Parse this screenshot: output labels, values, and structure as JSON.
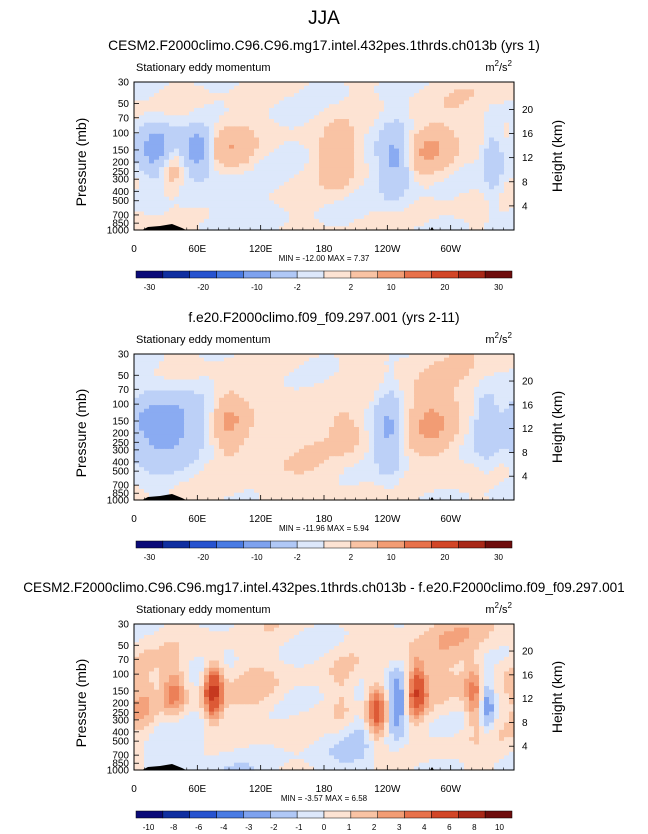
{
  "page": {
    "season": "JJA"
  },
  "chart_data": [
    {
      "type": "heatmap",
      "title": "CESM2.F2000climo.C96.C96.mg17.intel.432pes.1thrds.ch013b (yrs 1)",
      "subtitle": "Stationary eddy momentum",
      "units": "m²/s²",
      "units_base": "m",
      "units_mid": "/s",
      "units_sup": "2",
      "ylabel": "Pressure (mb)",
      "ylabel_right": "Height (km)",
      "xticks": [
        "0",
        "60E",
        "120E",
        "180",
        "120W",
        "60W"
      ],
      "yticks": [
        "30",
        "50",
        "70",
        "100",
        "150",
        "200",
        "250",
        "300",
        "400",
        "500",
        "700",
        "850",
        "1000"
      ],
      "ylevels": [
        30,
        50,
        70,
        100,
        150,
        200,
        250,
        300,
        400,
        500,
        700,
        850,
        1000
      ],
      "yticks_right": [
        "20",
        "16",
        "12",
        "8",
        "4"
      ],
      "stats": "MIN = -12.00  MAX =  7.37",
      "min": -12.0,
      "max": 7.37,
      "colorbar_labels": [
        "-30",
        "-20",
        "-10",
        "-2",
        "2",
        "10",
        "20",
        "30"
      ],
      "blobs": [
        {
          "lon": 22,
          "p": 150,
          "v": -8,
          "slon": 14,
          "sp": 0.09
        },
        {
          "lon": 60,
          "p": 150,
          "v": -7,
          "slon": 8,
          "sp": 0.07
        },
        {
          "lon": 35,
          "p": 230,
          "v": 5,
          "slon": 8,
          "sp": 0.08
        },
        {
          "lon": 92,
          "p": 140,
          "v": 5,
          "slon": 14,
          "sp": 0.08
        },
        {
          "lon": 193,
          "p": 180,
          "v": 4,
          "slon": 12,
          "sp": 0.1
        },
        {
          "lon": 247,
          "p": 200,
          "v": -6,
          "slon": 10,
          "sp": 0.12
        },
        {
          "lon": 280,
          "p": 150,
          "v": 5,
          "slon": 14,
          "sp": 0.07
        },
        {
          "lon": 340,
          "p": 200,
          "v": -4,
          "slon": 7,
          "sp": 0.12
        },
        {
          "lon": 85,
          "p": 400,
          "v": -1.5,
          "slon": 20,
          "sp": 0.2
        },
        {
          "lon": 320,
          "p": 70,
          "v": 1.2,
          "slon": 30,
          "sp": 0.15
        }
      ]
    },
    {
      "type": "heatmap",
      "title": "f.e20.F2000climo.f09_f09.297.001 (yrs 2-11)",
      "subtitle": "Stationary eddy momentum",
      "units": "m²/s²",
      "units_base": "m",
      "units_mid": "/s",
      "units_sup": "2",
      "ylabel": "Pressure (mb)",
      "ylabel_right": "Height (km)",
      "xticks": [
        "0",
        "60E",
        "120E",
        "180",
        "120W",
        "60W"
      ],
      "yticks": [
        "30",
        "50",
        "70",
        "100",
        "150",
        "200",
        "250",
        "300",
        "400",
        "500",
        "700",
        "850",
        "1000"
      ],
      "ylevels": [
        30,
        50,
        70,
        100,
        150,
        200,
        250,
        300,
        400,
        500,
        700,
        850,
        1000
      ],
      "yticks_right": [
        "20",
        "16",
        "12",
        "8",
        "4"
      ],
      "stats": "MIN = -11.96  MAX =  5.94",
      "min": -11.96,
      "max": 5.94,
      "colorbar_labels": [
        "-30",
        "-20",
        "-10",
        "-2",
        "2",
        "10",
        "20",
        "30"
      ],
      "blobs": [
        {
          "lon": 25,
          "p": 170,
          "v": -8,
          "slon": 25,
          "sp": 0.12
        },
        {
          "lon": 90,
          "p": 150,
          "v": 5,
          "slon": 10,
          "sp": 0.1
        },
        {
          "lon": 200,
          "p": 200,
          "v": 3.5,
          "slon": 8,
          "sp": 0.06
        },
        {
          "lon": 242,
          "p": 200,
          "v": -6,
          "slon": 9,
          "sp": 0.14
        },
        {
          "lon": 282,
          "p": 170,
          "v": 5,
          "slon": 14,
          "sp": 0.1
        },
        {
          "lon": 333,
          "p": 180,
          "v": -4,
          "slon": 8,
          "sp": 0.12
        },
        {
          "lon": 150,
          "p": 400,
          "v": 1.2,
          "slon": 40,
          "sp": 0.25
        },
        {
          "lon": 300,
          "p": 60,
          "v": 1.3,
          "slon": 50,
          "sp": 0.2
        }
      ]
    },
    {
      "type": "heatmap",
      "title": "CESM2.F2000climo.C96.C96.mg17.intel.432pes.1thrds.ch013b - f.e20.F2000climo.f09_f09.297.001",
      "subtitle": "Stationary eddy momentum",
      "units": "m²/s²",
      "units_base": "m",
      "units_mid": "/s",
      "units_sup": "2",
      "ylabel": "Pressure (mb)",
      "ylabel_right": "Height (km)",
      "xticks": [
        "0",
        "60E",
        "120E",
        "180",
        "120W",
        "60W"
      ],
      "yticks": [
        "30",
        "50",
        "70",
        "100",
        "150",
        "200",
        "250",
        "300",
        "400",
        "500",
        "700",
        "850",
        "1000"
      ],
      "ylevels": [
        30,
        50,
        70,
        100,
        150,
        200,
        250,
        300,
        400,
        500,
        700,
        850,
        1000
      ],
      "yticks_right": [
        "20",
        "16",
        "12",
        "8",
        "4"
      ],
      "stats": "MIN = -3.57  MAX =  6.58",
      "min": -3.57,
      "max": 6.58,
      "colorbar_labels": [
        "-10",
        "-8",
        "-6",
        "-4",
        "-3",
        "-2",
        "-1",
        "0",
        "1",
        "2",
        "3",
        "4",
        "6",
        "8",
        "10"
      ],
      "blobs": [
        {
          "lon": 38,
          "p": 150,
          "v": 3.5,
          "slon": 8,
          "sp": 0.08
        },
        {
          "lon": 75,
          "p": 150,
          "v": 6.5,
          "slon": 6,
          "sp": 0.09
        },
        {
          "lon": 8,
          "p": 200,
          "v": 1.5,
          "slon": 8,
          "sp": 0.12
        },
        {
          "lon": 120,
          "p": 160,
          "v": 1.2,
          "slon": 18,
          "sp": 0.1
        },
        {
          "lon": 198,
          "p": 200,
          "v": 1.5,
          "slon": 10,
          "sp": 0.12
        },
        {
          "lon": 230,
          "p": 250,
          "v": 5.5,
          "slon": 7,
          "sp": 0.1
        },
        {
          "lon": 250,
          "p": 200,
          "v": -3.5,
          "slon": 6,
          "sp": 0.1
        },
        {
          "lon": 268,
          "p": 150,
          "v": 5,
          "slon": 6,
          "sp": 0.09
        },
        {
          "lon": 322,
          "p": 170,
          "v": 3,
          "slon": 6,
          "sp": 0.1
        },
        {
          "lon": 335,
          "p": 200,
          "v": -3,
          "slon": 5,
          "sp": 0.1
        },
        {
          "lon": 215,
          "p": 500,
          "v": -1.2,
          "slon": 30,
          "sp": 0.2
        },
        {
          "lon": 60,
          "p": 850,
          "v": -1.2,
          "slon": 30,
          "sp": 0.1
        },
        {
          "lon": 300,
          "p": 40,
          "v": 1.2,
          "slon": 40,
          "sp": 0.25
        }
      ]
    }
  ]
}
